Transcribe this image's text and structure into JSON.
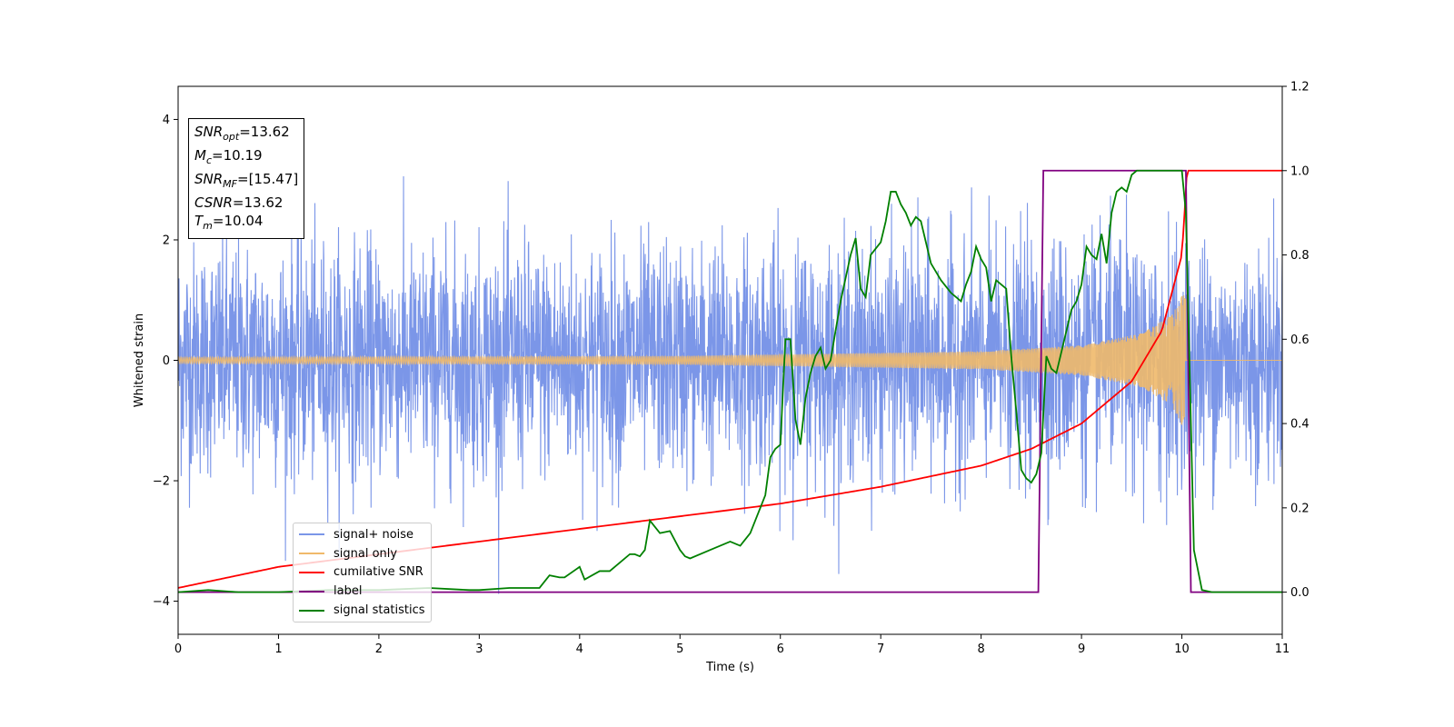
{
  "chart_data": {
    "type": "line",
    "xlabel": "Time (s)",
    "ylabel": "Whitened strain",
    "xlim": [
      0,
      11
    ],
    "ylim": [
      -4.55,
      4.55
    ],
    "y2lim": [
      -0.1,
      1.2
    ],
    "xticks": [
      "0",
      "1",
      "2",
      "3",
      "4",
      "5",
      "6",
      "7",
      "8",
      "9",
      "10",
      "11"
    ],
    "yticks": [
      "−4",
      "−2",
      "0",
      "2",
      "4"
    ],
    "y2ticks": [
      "0.0",
      "0.2",
      "0.4",
      "0.6",
      "0.8",
      "1.0",
      "1.2"
    ],
    "grid": false,
    "legend_position": "lower-left",
    "annotation": {
      "snr_opt": "13.62",
      "mc": "10.19",
      "snr_mf": "[15.47]",
      "csnr": "13.62",
      "tm": "10.04"
    },
    "series": [
      {
        "name": "signal+ noise",
        "axis": "left",
        "color": "#7b96e8",
        "description_stats": {
          "std": 0.95,
          "max": 3.7,
          "min": -4.15
        }
      },
      {
        "name": "signal only",
        "axis": "left",
        "color": "#f0b96a",
        "envelope": {
          "t": [
            0,
            5,
            8,
            9,
            9.6,
            9.9,
            10.04,
            10.05,
            11
          ],
          "amplitude": [
            0.05,
            0.07,
            0.15,
            0.25,
            0.45,
            0.75,
            1.2,
            0,
            0
          ]
        }
      },
      {
        "name": "cumilative SNR",
        "axis": "right",
        "color": "#ff0000",
        "x": [
          0,
          1,
          2,
          3,
          4,
          5,
          6,
          7,
          8,
          8.5,
          9,
          9.5,
          9.8,
          10.0,
          10.04,
          10.05,
          11
        ],
        "y": [
          0.01,
          0.06,
          0.09,
          0.12,
          0.15,
          0.18,
          0.21,
          0.25,
          0.3,
          0.34,
          0.4,
          0.5,
          0.62,
          0.8,
          0.95,
          1.0,
          1.0
        ]
      },
      {
        "name": "label",
        "axis": "right",
        "color": "#800080",
        "x": [
          0,
          8.57,
          8.62,
          10.04,
          10.09,
          11
        ],
        "y": [
          0,
          0,
          1,
          1,
          0,
          0
        ]
      },
      {
        "name": "signal statistics",
        "axis": "right",
        "color": "#008000",
        "x": [
          0,
          0.3,
          0.6,
          1.0,
          1.5,
          2.0,
          2.5,
          2.9,
          3.0,
          3.3,
          3.5,
          3.6,
          3.7,
          3.8,
          3.85,
          4.0,
          4.05,
          4.2,
          4.3,
          4.5,
          4.55,
          4.6,
          4.65,
          4.7,
          4.8,
          4.9,
          5.0,
          5.05,
          5.1,
          5.3,
          5.5,
          5.6,
          5.7,
          5.85,
          5.9,
          5.95,
          6.0,
          6.05,
          6.1,
          6.15,
          6.2,
          6.25,
          6.3,
          6.35,
          6.4,
          6.45,
          6.5,
          6.6,
          6.7,
          6.75,
          6.8,
          6.85,
          6.9,
          7.0,
          7.05,
          7.1,
          7.15,
          7.2,
          7.25,
          7.3,
          7.35,
          7.4,
          7.45,
          7.5,
          7.55,
          7.6,
          7.7,
          7.8,
          7.85,
          7.9,
          7.95,
          8.0,
          8.05,
          8.1,
          8.15,
          8.2,
          8.25,
          8.3,
          8.35,
          8.4,
          8.45,
          8.5,
          8.55,
          8.6,
          8.65,
          8.7,
          8.75,
          8.8,
          8.85,
          8.9,
          8.95,
          9.0,
          9.05,
          9.1,
          9.15,
          9.2,
          9.25,
          9.3,
          9.35,
          9.4,
          9.45,
          9.5,
          9.55,
          9.6,
          9.7,
          9.8,
          9.9,
          10.0,
          10.04,
          10.08,
          10.12,
          10.2,
          10.3,
          11
        ],
        "y": [
          0,
          0.005,
          0,
          0,
          0.005,
          0.005,
          0.01,
          0.005,
          0.005,
          0.01,
          0.01,
          0.01,
          0.04,
          0.035,
          0.035,
          0.06,
          0.03,
          0.05,
          0.05,
          0.09,
          0.09,
          0.085,
          0.1,
          0.17,
          0.14,
          0.145,
          0.1,
          0.085,
          0.08,
          0.1,
          0.12,
          0.11,
          0.14,
          0.23,
          0.32,
          0.34,
          0.35,
          0.6,
          0.6,
          0.41,
          0.35,
          0.46,
          0.52,
          0.56,
          0.58,
          0.53,
          0.55,
          0.69,
          0.8,
          0.84,
          0.72,
          0.7,
          0.8,
          0.83,
          0.88,
          0.95,
          0.95,
          0.92,
          0.9,
          0.87,
          0.89,
          0.88,
          0.83,
          0.78,
          0.76,
          0.74,
          0.71,
          0.69,
          0.73,
          0.76,
          0.82,
          0.79,
          0.77,
          0.69,
          0.74,
          0.73,
          0.72,
          0.56,
          0.43,
          0.29,
          0.27,
          0.26,
          0.28,
          0.33,
          0.56,
          0.53,
          0.52,
          0.57,
          0.62,
          0.67,
          0.69,
          0.73,
          0.82,
          0.8,
          0.79,
          0.85,
          0.78,
          0.9,
          0.95,
          0.96,
          0.95,
          0.99,
          1.0,
          1.0,
          1.0,
          1.0,
          1.0,
          1.0,
          0.9,
          0.5,
          0.1,
          0.005,
          0,
          0
        ]
      }
    ]
  }
}
